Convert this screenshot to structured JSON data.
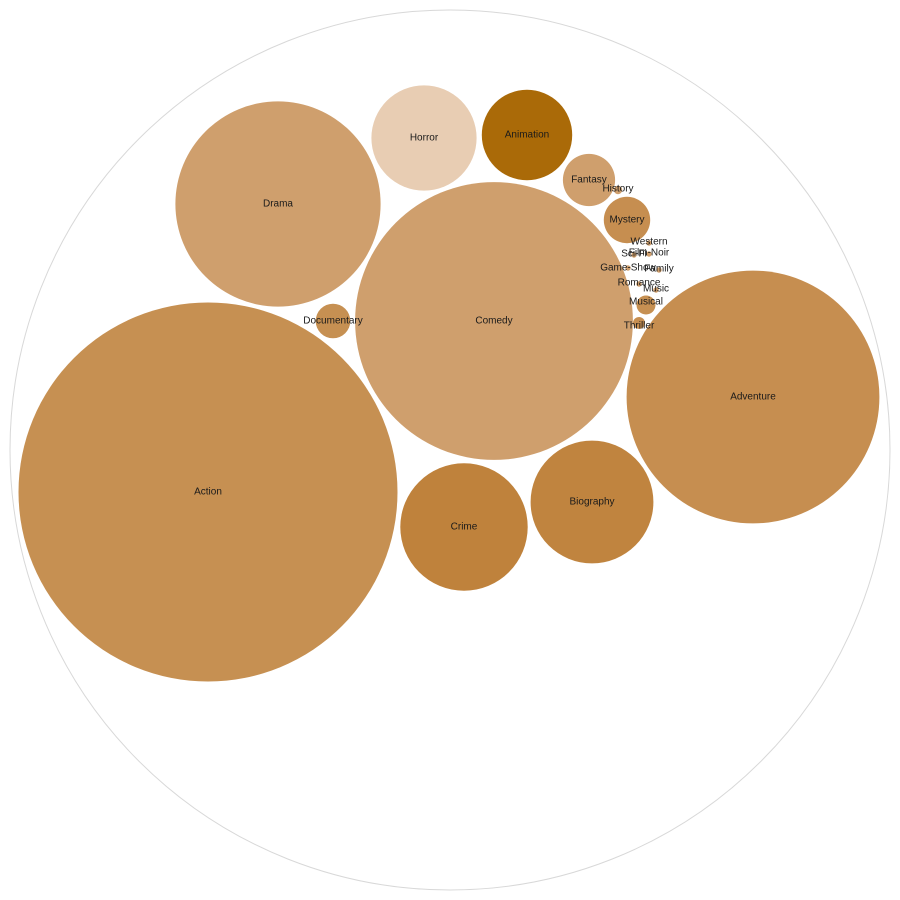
{
  "chart_data": {
    "type": "bubble",
    "title": "",
    "items": [
      {
        "name": "Action",
        "value": 100,
        "color": "#c69052"
      },
      {
        "name": "Comedy",
        "value": 53.7,
        "color": "#cf9f6d"
      },
      {
        "name": "Adventure",
        "value": 44.5,
        "color": "#c68e50"
      },
      {
        "name": "Drama",
        "value": 29.3,
        "color": "#cf9f6d"
      },
      {
        "name": "Crime",
        "value": 11.3,
        "color": "#bf823c"
      },
      {
        "name": "Biography",
        "value": 10.5,
        "color": "#c0843f"
      },
      {
        "name": "Horror",
        "value": 7.7,
        "color": "#e8cdb3"
      },
      {
        "name": "Animation",
        "value": 5.7,
        "color": "#aa6a08"
      },
      {
        "name": "Fantasy",
        "value": 1.9,
        "color": "#cf9f6d"
      },
      {
        "name": "Mystery",
        "value": 1.5,
        "color": "#c68e50"
      },
      {
        "name": "Documentary",
        "value": 0.83,
        "color": "#c69052"
      },
      {
        "name": "Thriller",
        "value": 0.1,
        "color": "#c68e50"
      },
      {
        "name": "Musical",
        "value": 0.25,
        "color": "#c69052"
      },
      {
        "name": "History",
        "value": 0.05,
        "color": "#cf9f6d"
      },
      {
        "name": "Western",
        "value": 0.02,
        "color": "#cf9f6d"
      },
      {
        "name": "Film-Noir",
        "value": 0.02,
        "color": "#cf9f6d"
      },
      {
        "name": "Sci-Fi",
        "value": 0.02,
        "color": "#cf9f6d"
      },
      {
        "name": "Game-Show",
        "value": 0.02,
        "color": "#cf9f6d"
      },
      {
        "name": "Family",
        "value": 0.02,
        "color": "#cf9f6d"
      },
      {
        "name": "Romance",
        "value": 0.02,
        "color": "#cf9f6d"
      },
      {
        "name": "Music",
        "value": 0.02,
        "color": "#cf9f6d"
      }
    ]
  }
}
